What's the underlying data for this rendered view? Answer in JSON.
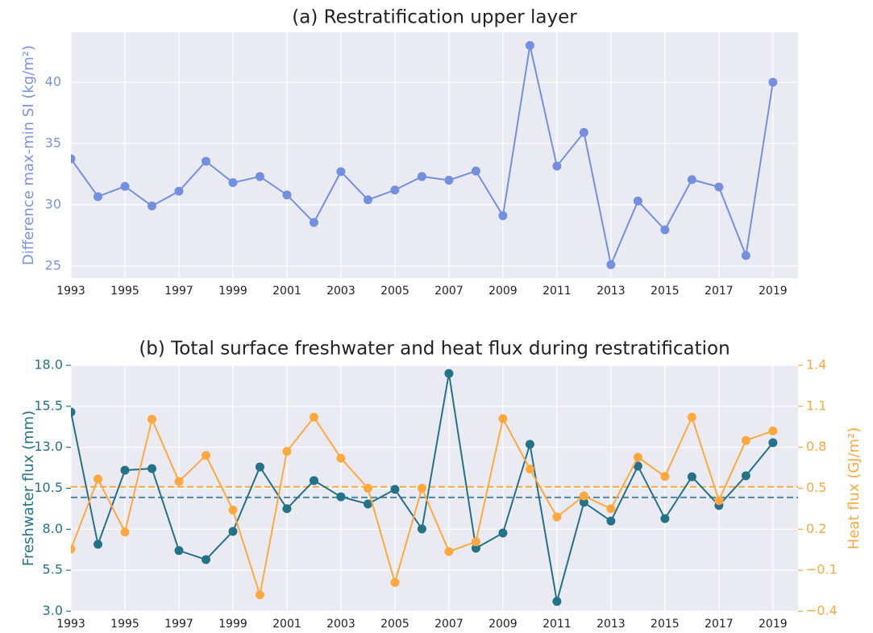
{
  "chart_data": [
    {
      "type": "line",
      "title": "(a) Restratification upper layer",
      "ylabel": "Difference max-min SI (kg/m²)",
      "ylabel_color": "#7b93e0",
      "x": [
        1993,
        1994,
        1995,
        1996,
        1997,
        1998,
        1999,
        2000,
        2001,
        2002,
        2003,
        2004,
        2005,
        2006,
        2007,
        2008,
        2009,
        2010,
        2011,
        2012,
        2013,
        2014,
        2015,
        2016,
        2017,
        2018,
        2019
      ],
      "series": [
        {
          "name": "Difference max-min SI",
          "color": "#7390e0",
          "values": [
            33.75,
            30.66,
            31.5,
            29.9,
            31.1,
            33.55,
            31.8,
            32.3,
            30.8,
            28.55,
            32.7,
            30.4,
            31.2,
            32.3,
            32.0,
            32.75,
            29.1,
            43.0,
            33.15,
            35.9,
            25.1,
            30.3,
            27.95,
            32.05,
            31.45,
            25.85,
            40.0
          ]
        }
      ],
      "xlim": [
        1993,
        2019.93
      ],
      "xticks": [
        1993,
        1995,
        1997,
        1999,
        2001,
        2003,
        2005,
        2007,
        2009,
        2011,
        2013,
        2015,
        2017,
        2019
      ],
      "ylim": [
        24.0,
        44.08
      ],
      "yticks": [
        25,
        30,
        35,
        40
      ],
      "grid": true
    },
    {
      "type": "line",
      "title": "(b) Total surface freshwater and heat flux during restratification",
      "ylabel": "Freshwater flux (mm)",
      "ylabel_color": "#24728a",
      "y2label": "Heat flux (GJ/m²)",
      "y2label_color": "#ffa83e",
      "x": [
        1993,
        1994,
        1995,
        1996,
        1997,
        1998,
        1999,
        2000,
        2001,
        2002,
        2003,
        2004,
        2005,
        2006,
        2007,
        2008,
        2009,
        2010,
        2011,
        2012,
        2013,
        2014,
        2015,
        2016,
        2017,
        2018,
        2019
      ],
      "series": [
        {
          "name": "Freshwater flux",
          "color": "#24728a",
          "values": [
            15.15,
            7.08,
            11.6,
            11.7,
            6.7,
            6.15,
            7.87,
            11.8,
            9.25,
            10.97,
            9.98,
            9.54,
            10.43,
            8.02,
            17.5,
            6.84,
            7.77,
            13.18,
            3.6,
            9.64,
            8.5,
            11.85,
            8.65,
            11.2,
            9.45,
            11.26,
            13.28
          ]
        },
        {
          "name": "Heat flux",
          "color": "#ffa83e",
          "axis": "y2",
          "values": [
            0.055,
            0.568,
            0.18,
            1.005,
            0.55,
            0.74,
            0.34,
            -0.28,
            0.77,
            1.02,
            0.72,
            0.5,
            -0.19,
            0.5,
            0.037,
            0.108,
            1.01,
            0.64,
            0.29,
            0.444,
            0.35,
            0.727,
            0.586,
            1.02,
            0.41,
            0.85,
            0.92
          ]
        }
      ],
      "hlines": [
        {
          "value": 9.94,
          "color": "#4f88a0"
        },
        {
          "value": 0.51,
          "color": "#ffa83e",
          "axis": "y2"
        }
      ],
      "xlim": [
        1993,
        2019.93
      ],
      "xticks": [
        1993,
        1995,
        1997,
        1999,
        2001,
        2003,
        2005,
        2007,
        2009,
        2011,
        2013,
        2015,
        2017,
        2019
      ],
      "ylim": [
        3,
        18
      ],
      "yticks": [
        {
          "value": 3,
          "label": "3.0"
        },
        5.5,
        {
          "value": 8,
          "label": "8.0"
        },
        10.5,
        {
          "value": 13,
          "label": "13.0"
        },
        15.5,
        {
          "value": 18,
          "label": "18.0"
        }
      ],
      "y2lim": [
        -0.4,
        1.4
      ],
      "y2ticks": [
        {
          "value": -0.4,
          "label": "−0.4"
        },
        {
          "value": -0.1,
          "label": "−0.1"
        },
        0.2,
        0.5,
        0.8,
        1.1,
        1.4
      ],
      "grid": true
    }
  ]
}
